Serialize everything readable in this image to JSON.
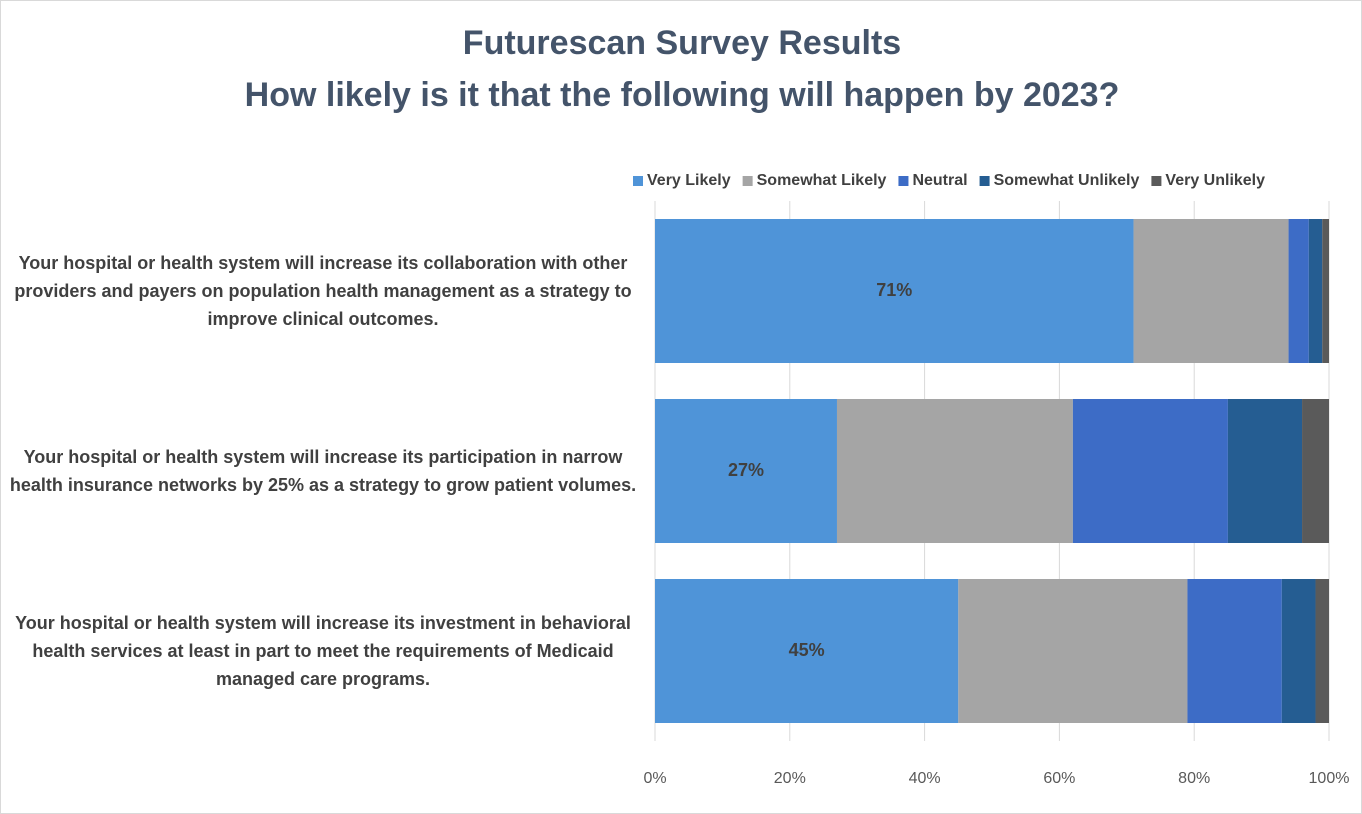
{
  "chart_data": {
    "type": "stacked_barh",
    "title": "Futurescan Survey Results",
    "subtitle": "How likely is it that the following will happen by 2023?",
    "categories": [
      "Your hospital or health system will increase its collaboration with other providers and payers on population health management as a strategy to improve clinical outcomes.",
      "Your hospital or health system will increase its participation in narrow health insurance networks by 25% as a strategy to grow patient volumes.",
      "Your hospital or health system will increase its investment in behavioral health services at least in part to meet the requirements of Medicaid managed care programs."
    ],
    "series": [
      {
        "name": "Very Likely",
        "color": "#4f94d8",
        "values": [
          71,
          27,
          45
        ],
        "value_labels": [
          "71%",
          "27%",
          "45%"
        ]
      },
      {
        "name": "Somewhat Likely",
        "color": "#a5a5a5",
        "values": [
          23,
          35,
          34
        ]
      },
      {
        "name": "Neutral",
        "color": "#3d6cc6",
        "values": [
          3,
          23,
          14
        ]
      },
      {
        "name": "Somewhat Unlikely",
        "color": "#255d92",
        "values": [
          2,
          11,
          5
        ]
      },
      {
        "name": "Very Unlikely",
        "color": "#5a5a5a",
        "values": [
          1,
          4,
          2
        ]
      }
    ],
    "xlim": [
      0,
      100
    ],
    "xticks": [
      {
        "value": 0,
        "label": "0%"
      },
      {
        "value": 20,
        "label": "20%"
      },
      {
        "value": 40,
        "label": "40%"
      },
      {
        "value": 60,
        "label": "60%"
      },
      {
        "value": 80,
        "label": "80%"
      },
      {
        "value": 100,
        "label": "100%"
      }
    ],
    "grid": true,
    "legend": "top"
  }
}
